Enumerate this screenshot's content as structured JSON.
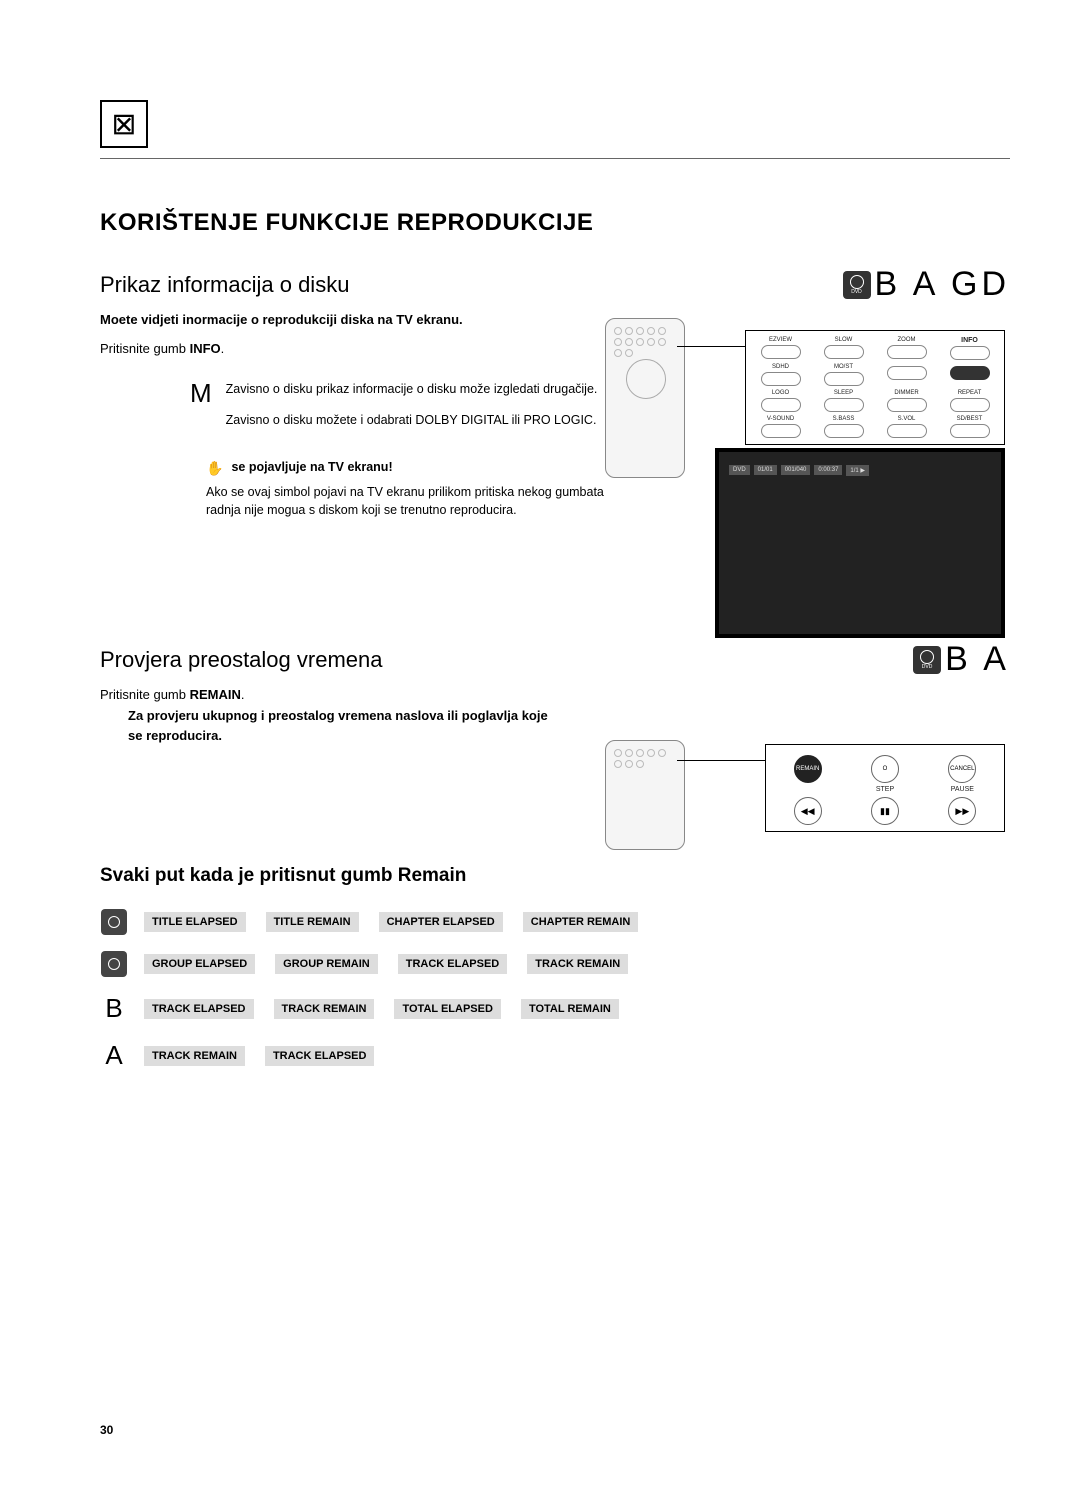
{
  "page_number": "30",
  "main_heading": "KORIŠTENJE FUNKCIJE REPRODUKCIJE",
  "section1": {
    "title": "Prikaz informacija o disku",
    "badge": "B A GD",
    "intro": "Moete vidjeti inormacije o reprodukciji diska na TV ekranu.",
    "instruction_prefix": "Pritisnite gumb",
    "instruction_button": "INFO",
    "instruction_suffix": ".",
    "note_glyph": "M",
    "note_p1": "Zavisno o disku prikaz informacije o disku može izgledati drugačije.",
    "note_p2": "Zavisno o disku možete i odabrati DOLBY DIGITAL ili PRO LOGIC.",
    "hand_text": "se pojavljuje na TV ekranu!",
    "hand_desc": "Ako se ovaj simbol pojavi na TV ekranu prilikom pritiska nekog gumbata radnja nije mogua s diskom koji se trenutno reproducira."
  },
  "panel1": {
    "labels": [
      "EZVIEW",
      "SLOW",
      "ZOOM",
      "INFO",
      "SDHD",
      "MO/ST",
      "",
      "",
      "LOGO",
      "SLEEP",
      "DIMMER",
      "REPEAT",
      "V-SOUND",
      "S.BASS",
      "S.VOL",
      "SD/BEST"
    ],
    "highlight_index": 7
  },
  "osd": {
    "fields": [
      "DVD",
      "01/01",
      "001/040",
      "0:00:37",
      "1/1 ▶"
    ]
  },
  "section2": {
    "title": "Provjera preostalog vremena",
    "badge": "B A",
    "instruction_prefix": "Pritisnite gumb",
    "instruction_button": "REMAIN",
    "instruction_suffix": ".",
    "desc": "Za provjeru ukupnog i preostalog vremena naslova ili poglavlja koje se reproducira."
  },
  "panel2": {
    "top": [
      {
        "btn": "REMAIN",
        "highlight": true,
        "label": ""
      },
      {
        "btn": "O",
        "highlight": false,
        "label": "STEP"
      },
      {
        "btn": "CANCEL",
        "highlight": false,
        "label": "PAUSE"
      }
    ],
    "bottom": [
      "◀◀",
      "▮▮",
      "▶▶"
    ]
  },
  "section3": {
    "title": "Svaki put kada je pritisnut gumb Remain",
    "rows": [
      {
        "lead_type": "icon",
        "lead": "DVD-VIDEO",
        "items": [
          "TITLE ELAPSED",
          "TITLE REMAIN",
          "CHAPTER ELAPSED",
          "CHAPTER REMAIN"
        ]
      },
      {
        "lead_type": "icon",
        "lead": "DVD-AUDIO",
        "items": [
          "GROUP ELAPSED",
          "GROUP REMAIN",
          "TRACK ELAPSED",
          "TRACK REMAIN"
        ]
      },
      {
        "lead_type": "letter",
        "lead": "B",
        "items": [
          "TRACK ELAPSED",
          "TRACK REMAIN",
          "TOTAL ELAPSED",
          "TOTAL REMAIN"
        ]
      },
      {
        "lead_type": "letter",
        "lead": "A",
        "items": [
          "TRACK REMAIN",
          "TRACK ELAPSED"
        ]
      }
    ]
  },
  "colors": {
    "chip_bg": "#dddddd",
    "text": "#000000",
    "bg": "#ffffff"
  }
}
